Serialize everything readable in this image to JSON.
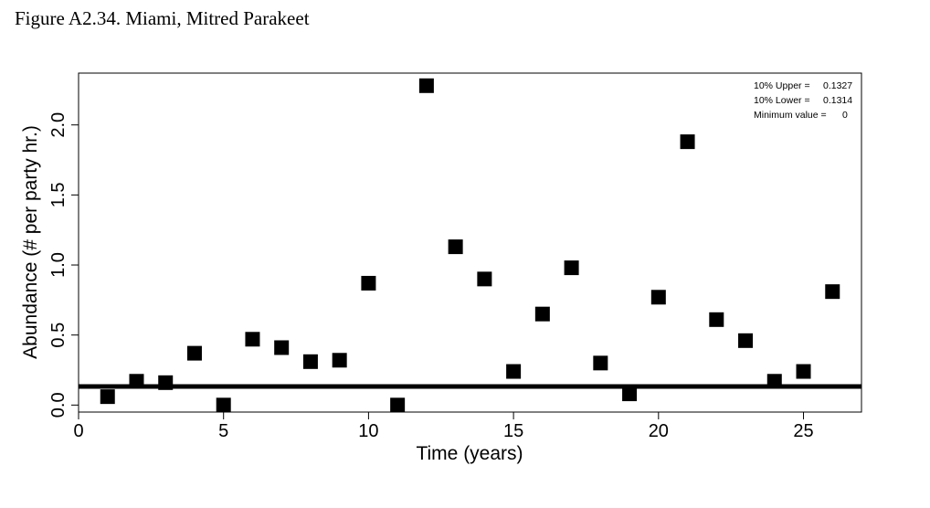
{
  "figure": {
    "title": "Figure A2.34. Miami, Mitred Parakeet"
  },
  "chart_data": {
    "type": "scatter",
    "title": "",
    "xlabel": "Time (years)",
    "ylabel": "Abundance (# per party hr.)",
    "xlim": [
      0,
      27
    ],
    "ylim": [
      -0.05,
      2.37
    ],
    "xticks": [
      0,
      5,
      10,
      15,
      20,
      25
    ],
    "yticks": [
      0.0,
      0.5,
      1.0,
      1.5,
      2.0
    ],
    "xtick_labels": [
      "0",
      "5",
      "10",
      "15",
      "20",
      "25"
    ],
    "ytick_labels": [
      "0.0",
      "0.5",
      "1.0",
      "1.5",
      "2.0"
    ],
    "grid": false,
    "marker": "filled-square",
    "marker_color": "#000000",
    "points": [
      {
        "x": 1,
        "y": 0.06
      },
      {
        "x": 2,
        "y": 0.17
      },
      {
        "x": 3,
        "y": 0.16
      },
      {
        "x": 4,
        "y": 0.37
      },
      {
        "x": 5,
        "y": 0.0
      },
      {
        "x": 6,
        "y": 0.47
      },
      {
        "x": 7,
        "y": 0.41
      },
      {
        "x": 8,
        "y": 0.31
      },
      {
        "x": 9,
        "y": 0.32
      },
      {
        "x": 10,
        "y": 0.87
      },
      {
        "x": 11,
        "y": 0.0
      },
      {
        "x": 12,
        "y": 2.28
      },
      {
        "x": 13,
        "y": 1.13
      },
      {
        "x": 14,
        "y": 0.9
      },
      {
        "x": 15,
        "y": 0.24
      },
      {
        "x": 16,
        "y": 0.65
      },
      {
        "x": 17,
        "y": 0.98
      },
      {
        "x": 18,
        "y": 0.3
      },
      {
        "x": 19,
        "y": 0.08
      },
      {
        "x": 20,
        "y": 0.77
      },
      {
        "x": 21,
        "y": 1.88
      },
      {
        "x": 22,
        "y": 0.61
      },
      {
        "x": 23,
        "y": 0.46
      },
      {
        "x": 24,
        "y": 0.17
      },
      {
        "x": 25,
        "y": 0.24
      },
      {
        "x": 26,
        "y": 0.81
      }
    ],
    "reference_line": {
      "y": 0.1327,
      "color": "#000000"
    },
    "legend": {
      "placement": "top-right",
      "entries": [
        {
          "label": "10% Upper =",
          "value": "0.1327"
        },
        {
          "label": "10% Lower =",
          "value": "0.1314"
        },
        {
          "label": "Minimum value =",
          "value": "0"
        }
      ]
    }
  }
}
